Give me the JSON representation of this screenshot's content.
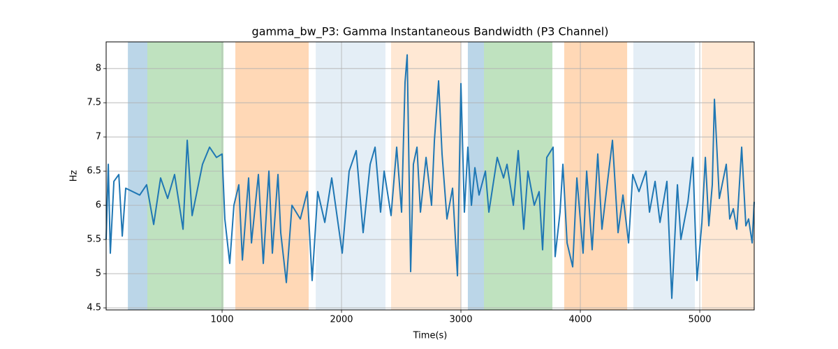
{
  "chart_data": {
    "type": "line",
    "title": "gamma_bw_P3: Gamma Instantaneous Bandwidth (P3 Channel)",
    "xlabel": "Time(s)",
    "ylabel": "Hz",
    "xlim": [
      29,
      5456
    ],
    "ylim": [
      4.47,
      8.39
    ],
    "xticks": [
      1000,
      2000,
      3000,
      4000,
      5000
    ],
    "yticks": [
      4.5,
      5.0,
      5.5,
      6.0,
      6.5,
      7.0,
      7.5,
      8.0
    ],
    "grid": true,
    "spans": [
      {
        "start": 211,
        "end": 374,
        "color": "#1f77b4",
        "opacity": 0.3
      },
      {
        "start": 374,
        "end": 1012,
        "color": "#2ca02c",
        "opacity": 0.3
      },
      {
        "start": 1111,
        "end": 1725,
        "color": "#ff7f0e",
        "opacity": 0.3
      },
      {
        "start": 1784,
        "end": 2368,
        "color": "#1f77b4",
        "opacity": 0.12
      },
      {
        "start": 2415,
        "end": 3000,
        "color": "#ff7f0e",
        "opacity": 0.18
      },
      {
        "start": 3058,
        "end": 3193,
        "color": "#1f77b4",
        "opacity": 0.3
      },
      {
        "start": 3193,
        "end": 3766,
        "color": "#2ca02c",
        "opacity": 0.3
      },
      {
        "start": 3865,
        "end": 4392,
        "color": "#ff7f0e",
        "opacity": 0.3
      },
      {
        "start": 4444,
        "end": 4959,
        "color": "#1f77b4",
        "opacity": 0.12
      },
      {
        "start": 5018,
        "end": 5456,
        "color": "#ff7f0e",
        "opacity": 0.18
      }
    ],
    "x": [
      29,
      47,
      64,
      94,
      135,
      164,
      193,
      310,
      368,
      427,
      485,
      544,
      602,
      673,
      708,
      749,
      836,
      895,
      953,
      1000,
      1023,
      1064,
      1099,
      1140,
      1170,
      1222,
      1246,
      1304,
      1345,
      1392,
      1421,
      1468,
      1491,
      1538,
      1585,
      1655,
      1713,
      1754,
      1801,
      1860,
      1918,
      2006,
      2064,
      2123,
      2181,
      2240,
      2281,
      2327,
      2357,
      2415,
      2462,
      2503,
      2532,
      2550,
      2579,
      2602,
      2632,
      2661,
      2708,
      2754,
      2778,
      2813,
      2842,
      2883,
      2930,
      2971,
      3000,
      3029,
      3058,
      3088,
      3117,
      3152,
      3205,
      3234,
      3304,
      3357,
      3386,
      3439,
      3480,
      3526,
      3561,
      3614,
      3655,
      3684,
      3719,
      3772,
      3789,
      3830,
      3854,
      3889,
      3936,
      3971,
      4023,
      4053,
      4099,
      4146,
      4181,
      4228,
      4269,
      4316,
      4357,
      4404,
      4439,
      4491,
      4550,
      4579,
      4626,
      4667,
      4725,
      4766,
      4813,
      4842,
      4901,
      4942,
      4977,
      5018,
      5047,
      5076,
      5105,
      5123,
      5164,
      5222,
      5251,
      5281,
      5310,
      5351,
      5386,
      5409,
      5439,
      5456
    ],
    "series": [
      {
        "name": "gamma_bw_P3",
        "color": "#1f77b4",
        "values": [
          5.5,
          6.6,
          5.3,
          6.35,
          6.45,
          5.55,
          6.25,
          6.15,
          6.3,
          5.72,
          6.4,
          6.1,
          6.45,
          5.65,
          6.95,
          5.85,
          6.6,
          6.85,
          6.7,
          6.75,
          5.8,
          5.15,
          6.0,
          6.3,
          5.2,
          6.4,
          5.45,
          6.45,
          5.15,
          6.5,
          5.3,
          6.45,
          5.6,
          4.87,
          6.0,
          5.8,
          6.2,
          4.9,
          6.2,
          5.75,
          6.4,
          5.3,
          6.5,
          6.8,
          5.6,
          6.6,
          6.85,
          5.9,
          6.5,
          5.85,
          6.85,
          5.9,
          7.8,
          8.2,
          5.03,
          6.6,
          6.85,
          5.9,
          6.7,
          6.0,
          6.95,
          7.82,
          6.75,
          5.8,
          6.25,
          4.97,
          7.78,
          5.9,
          6.85,
          6.0,
          6.55,
          6.15,
          6.5,
          5.9,
          6.7,
          6.4,
          6.6,
          6.0,
          6.8,
          5.65,
          6.5,
          6.0,
          6.2,
          5.35,
          6.7,
          6.85,
          5.25,
          5.9,
          6.6,
          5.45,
          5.1,
          6.4,
          5.3,
          6.5,
          5.35,
          6.75,
          5.65,
          6.35,
          6.95,
          5.6,
          6.15,
          5.45,
          6.45,
          6.2,
          6.5,
          5.9,
          6.35,
          5.75,
          6.35,
          4.64,
          6.3,
          5.5,
          6.05,
          6.7,
          4.9,
          5.75,
          6.7,
          5.7,
          6.3,
          7.55,
          6.1,
          6.6,
          5.8,
          5.95,
          5.65,
          6.85,
          5.7,
          5.8,
          5.45,
          6.05
        ]
      }
    ]
  }
}
